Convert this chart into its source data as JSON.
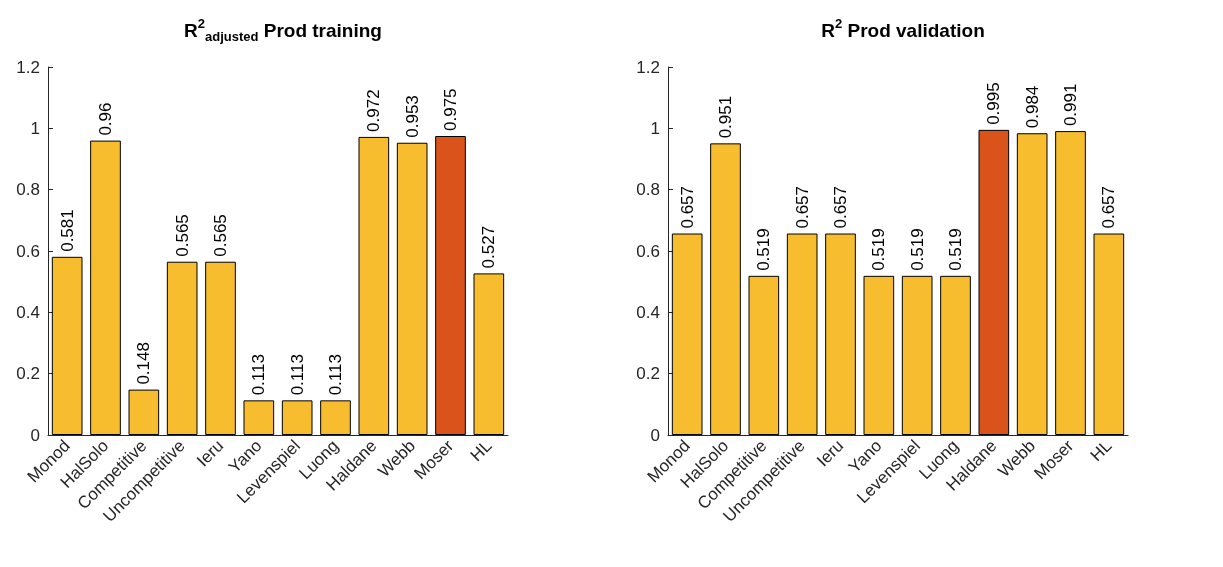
{
  "chart_data": [
    {
      "type": "bar",
      "title": "R$^{2}$$_{adjusted}$ Prod training",
      "categories": [
        "Monod",
        "HalSolo",
        "Competitive",
        "Uncompetitive",
        "Ieru",
        "Yano",
        "Levenspiel",
        "Luong",
        "Haldane",
        "Webb",
        "Moser",
        "HL"
      ],
      "values": [
        0.581,
        0.96,
        0.148,
        0.565,
        0.565,
        0.113,
        0.113,
        0.113,
        0.972,
        0.953,
        0.975,
        0.527
      ],
      "colors": [
        "#f7bd2e",
        "#f7bd2e",
        "#f7bd2e",
        "#f7bd2e",
        "#f7bd2e",
        "#f7bd2e",
        "#f7bd2e",
        "#f7bd2e",
        "#f7bd2e",
        "#f7bd2e",
        "#d9531a",
        "#f7bd2e"
      ],
      "ylim": [
        0,
        1.2
      ],
      "yticks": [
        0,
        0.2,
        0.4,
        0.6,
        0.8,
        1,
        1.2
      ],
      "data_labels": true,
      "grid": false
    },
    {
      "type": "bar",
      "title": "R$^{2}$ Prod validation",
      "categories": [
        "Monod",
        "HalSolo",
        "Competitive",
        "Uncompetitive",
        "Ieru",
        "Yano",
        "Levenspiel",
        "Luong",
        "Haldane",
        "Webb",
        "Moser",
        "HL"
      ],
      "values": [
        0.657,
        0.951,
        0.519,
        0.657,
        0.657,
        0.519,
        0.519,
        0.519,
        0.995,
        0.984,
        0.991,
        0.657
      ],
      "colors": [
        "#f7bd2e",
        "#f7bd2e",
        "#f7bd2e",
        "#f7bd2e",
        "#f7bd2e",
        "#f7bd2e",
        "#f7bd2e",
        "#f7bd2e",
        "#d9531a",
        "#f7bd2e",
        "#f7bd2e",
        "#f7bd2e"
      ],
      "ylim": [
        0,
        1.2
      ],
      "yticks": [
        0,
        0.2,
        0.4,
        0.6,
        0.8,
        1,
        1.2
      ],
      "data_labels": true,
      "grid": false
    }
  ]
}
